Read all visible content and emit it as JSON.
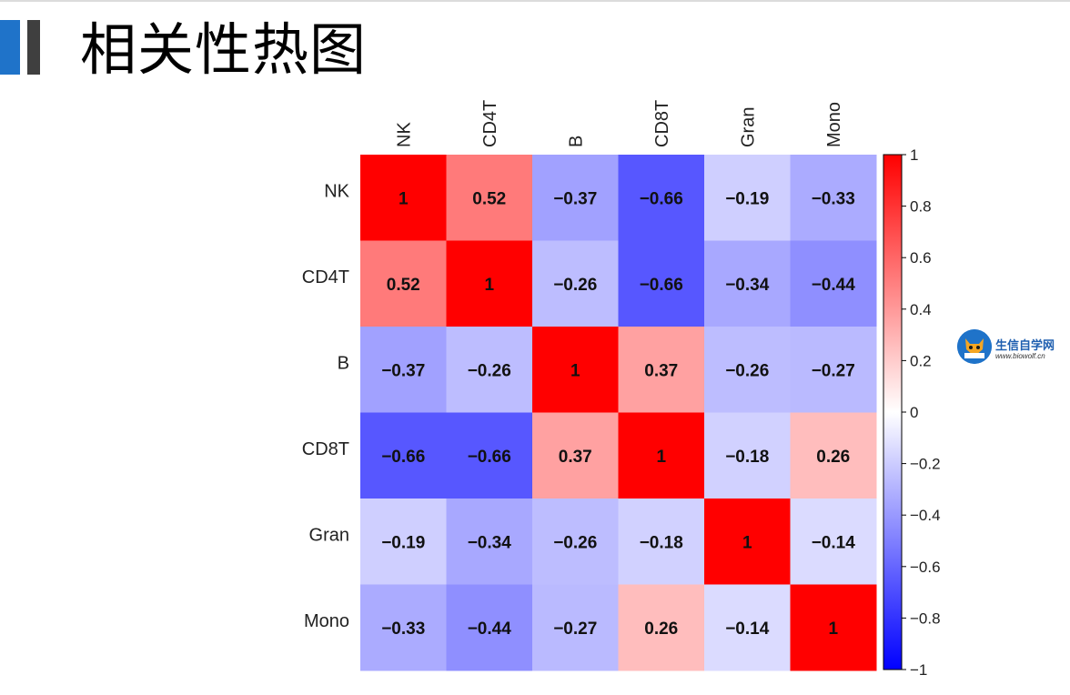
{
  "slide": {
    "title": "相关性热图"
  },
  "logo": {
    "text": "生信自学网",
    "url": "www.biowolf.cn"
  },
  "colors": {
    "accent_blue": "#1f73c9",
    "accent_gray": "#3f3f3f",
    "low": "#0000ff",
    "mid": "#ffffff",
    "high": "#ff0000"
  },
  "chart_data": {
    "type": "heatmap",
    "title": "",
    "rows": [
      "NK",
      "CD4T",
      "B",
      "CD8T",
      "Gran",
      "Mono"
    ],
    "columns": [
      "NK",
      "CD4T",
      "B",
      "CD8T",
      "Gran",
      "Mono"
    ],
    "values": [
      [
        1,
        0.52,
        -0.37,
        -0.66,
        -0.19,
        -0.33
      ],
      [
        0.52,
        1,
        -0.26,
        -0.66,
        -0.34,
        -0.44
      ],
      [
        -0.37,
        -0.26,
        1,
        0.37,
        -0.26,
        -0.27
      ],
      [
        -0.66,
        -0.66,
        0.37,
        1,
        -0.18,
        0.26
      ],
      [
        -0.19,
        -0.34,
        -0.26,
        -0.18,
        1,
        -0.14
      ],
      [
        -0.33,
        -0.44,
        -0.27,
        0.26,
        -0.14,
        1
      ]
    ],
    "cell_labels": [
      [
        "1",
        "0.52",
        "−0.37",
        "−0.66",
        "−0.19",
        "−0.33"
      ],
      [
        "0.52",
        "1",
        "−0.26",
        "−0.66",
        "−0.34",
        "−0.44"
      ],
      [
        "−0.37",
        "−0.26",
        "1",
        "0.37",
        "−0.26",
        "−0.27"
      ],
      [
        "−0.66",
        "−0.66",
        "0.37",
        "1",
        "−0.18",
        "0.26"
      ],
      [
        "−0.19",
        "−0.34",
        "−0.26",
        "−0.18",
        "1",
        "−0.14"
      ],
      [
        "−0.33",
        "−0.44",
        "−0.27",
        "0.26",
        "−0.14",
        "1"
      ]
    ],
    "colorbar": {
      "range": [
        -1,
        1
      ],
      "ticks": [
        1,
        0.8,
        0.6,
        0.4,
        0.2,
        0,
        -0.2,
        -0.4,
        -0.6,
        -0.8,
        -1
      ],
      "tick_labels": [
        "1",
        "0.8",
        "0.6",
        "0.4",
        "0.2",
        "0",
        "−0.2",
        "−0.4",
        "−0.6",
        "−0.8",
        "−1"
      ],
      "position": "right"
    },
    "grid": false
  }
}
